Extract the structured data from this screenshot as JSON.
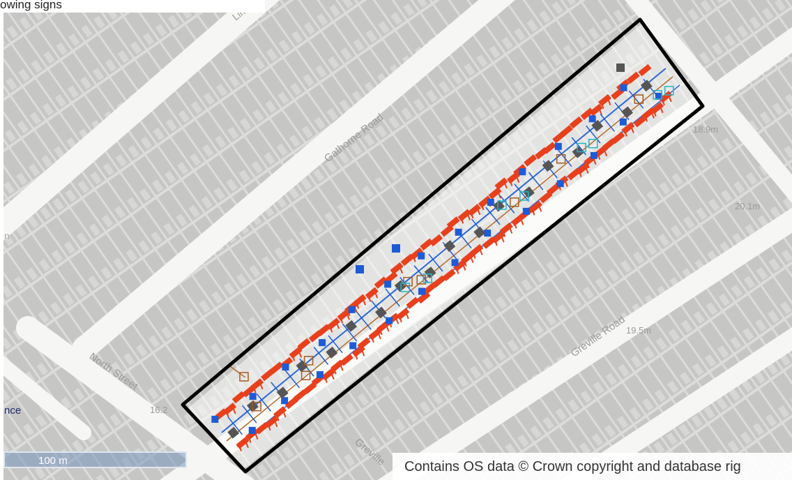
{
  "top_caption": "owing signs",
  "map": {
    "street_labels": [
      {
        "text": "Lime",
        "key": "lime"
      },
      {
        "text": "Gathorne Road",
        "key": "gathorne"
      },
      {
        "text": "North Street",
        "key": "north"
      },
      {
        "text": "Greville Road",
        "key": "greville"
      },
      {
        "text": "Greville",
        "key": "greville2"
      }
    ],
    "spot_heights": [
      "18.9m",
      "20.1m",
      "19.5m",
      "16.2"
    ],
    "colors": {
      "background": "#dcdcda",
      "building": "#c3c3c1",
      "road": "#f6f6f4",
      "boundary": "#000000",
      "feature_red": "#e8401c",
      "feature_blue": "#1e5bd6",
      "feature_grey": "#555555",
      "feature_brown": "#a35a1f",
      "feature_cyan": "#22b5c8"
    }
  },
  "legend_fragment": "nce",
  "legend_fragment_left": "n",
  "scale_bar": {
    "label": "100 m"
  },
  "attribution": "Contains OS data © Crown copyright and database rig"
}
